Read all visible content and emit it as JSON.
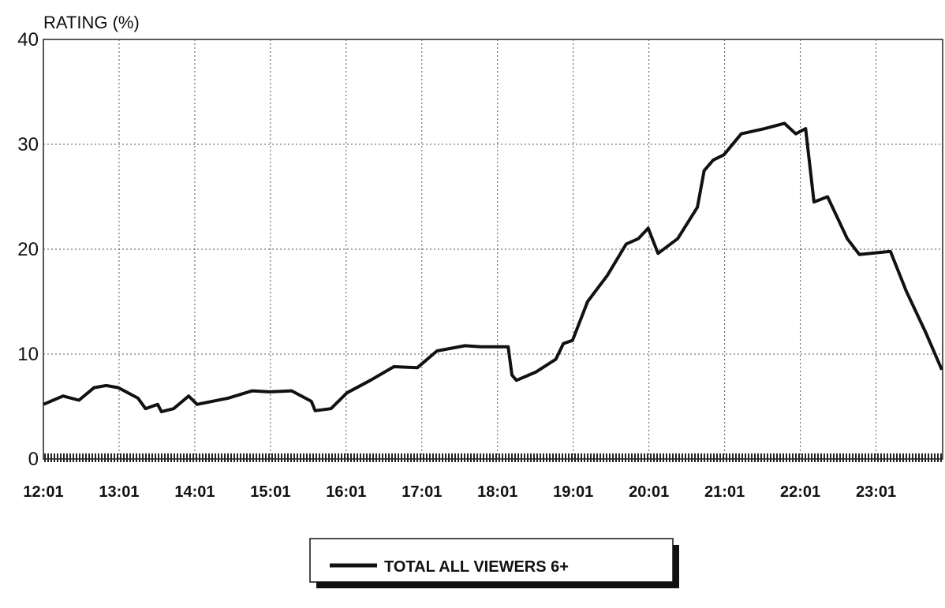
{
  "chart_data": {
    "type": "line",
    "y_label": "RATING (%)",
    "x": [
      12.02,
      12.28,
      12.49,
      12.69,
      12.85,
      13.01,
      13.27,
      13.37,
      13.53,
      13.58,
      13.74,
      13.94,
      14.05,
      14.46,
      14.78,
      15.01,
      15.3,
      15.56,
      15.61,
      15.82,
      16.03,
      16.34,
      16.65,
      16.96,
      17.22,
      17.59,
      17.8,
      18.16,
      18.21,
      18.27,
      18.53,
      18.79,
      18.89,
      19.01,
      19.21,
      19.47,
      19.72,
      19.88,
      20.01,
      20.14,
      20.4,
      20.66,
      20.75,
      20.87,
      21.01,
      21.24,
      21.55,
      21.81,
      21.96,
      22.09,
      22.2,
      22.38,
      22.64,
      22.8,
      23.21,
      23.42,
      23.68,
      23.89
    ],
    "series": [
      {
        "name": "TOTAL ALL VIEWERS 6+",
        "color": "#111111",
        "values": [
          5.2,
          6.0,
          5.6,
          6.8,
          7.0,
          6.8,
          5.8,
          4.8,
          5.2,
          4.5,
          4.8,
          6.0,
          5.2,
          5.8,
          6.5,
          6.4,
          6.5,
          5.5,
          4.6,
          4.8,
          6.3,
          7.5,
          8.8,
          8.7,
          10.3,
          10.8,
          10.7,
          10.7,
          8.0,
          7.5,
          8.3,
          9.5,
          11.0,
          11.3,
          15.0,
          17.5,
          20.5,
          21.0,
          22.0,
          19.6,
          21.0,
          24.0,
          27.5,
          28.5,
          29.0,
          31.0,
          31.5,
          32.0,
          31.0,
          31.5,
          24.5,
          25.0,
          21.0,
          19.5,
          19.8,
          16.0,
          12.0,
          8.5
        ]
      }
    ],
    "xlim": [
      12.02,
      23.9
    ],
    "xticks": [
      {
        "value": 12.02,
        "label": "12:01"
      },
      {
        "value": 13.02,
        "label": "13:01"
      },
      {
        "value": 14.02,
        "label": "14:01"
      },
      {
        "value": 15.02,
        "label": "15:01"
      },
      {
        "value": 16.02,
        "label": "16:01"
      },
      {
        "value": 17.02,
        "label": "17:01"
      },
      {
        "value": 18.02,
        "label": "18:01"
      },
      {
        "value": 19.02,
        "label": "19:01"
      },
      {
        "value": 20.02,
        "label": "20:01"
      },
      {
        "value": 21.02,
        "label": "21:01"
      },
      {
        "value": 22.02,
        "label": "22:01"
      },
      {
        "value": 23.02,
        "label": "23:01"
      }
    ],
    "ylim": [
      0,
      40
    ],
    "yticks": [
      0,
      10,
      20,
      30,
      40
    ],
    "grid": true,
    "legend": "bottom"
  }
}
